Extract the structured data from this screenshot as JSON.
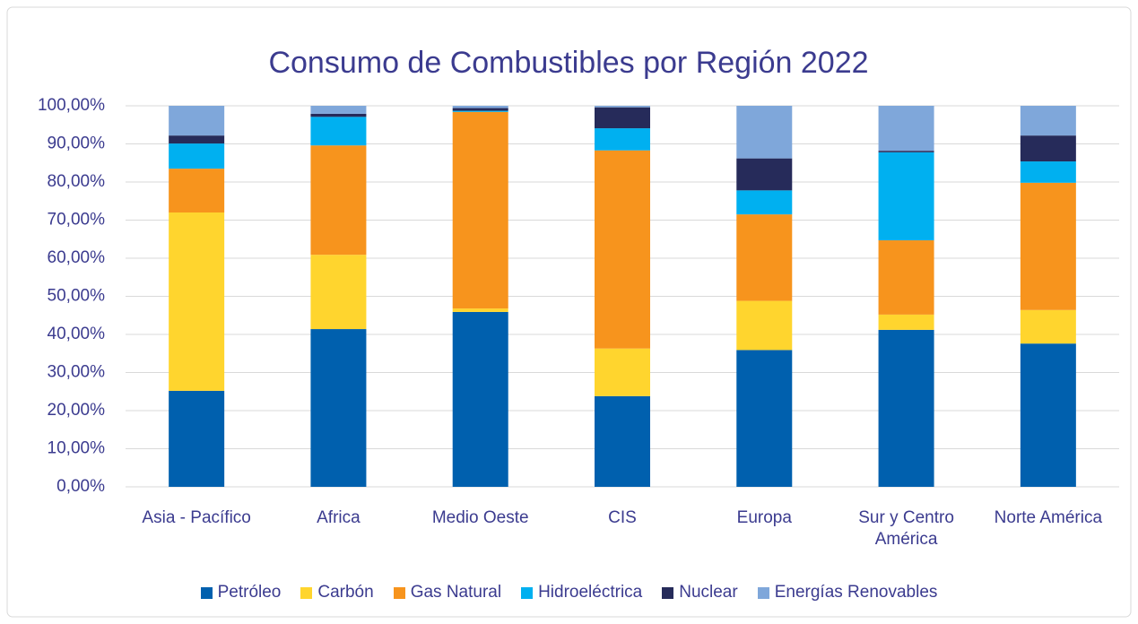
{
  "chart_data": {
    "type": "stacked_bar",
    "title": "Consumo de Combustibles por Región 2022",
    "categories": [
      "Asia - Pacífico",
      "Africa",
      "Medio Oeste",
      "CIS",
      "Europa",
      "Sur y Centro América",
      "Norte América"
    ],
    "series": [
      {
        "name": "Petróleo",
        "color": "#0060ae",
        "values": [
          25.2,
          41.4,
          45.9,
          23.8,
          35.9,
          41.2,
          37.6
        ]
      },
      {
        "name": "Carbón",
        "color": "#ffd52e",
        "values": [
          46.8,
          19.5,
          0.9,
          12.5,
          12.9,
          4.0,
          8.8
        ]
      },
      {
        "name": "Gas Natural",
        "color": "#f7941d",
        "values": [
          11.5,
          28.7,
          51.6,
          52.0,
          22.7,
          19.5,
          33.4
        ]
      },
      {
        "name": "Hidroeléctrica",
        "color": "#00b0f0",
        "values": [
          6.6,
          7.5,
          0.3,
          5.8,
          6.3,
          23.1,
          5.6
        ]
      },
      {
        "name": "Nuclear",
        "color": "#262b5a",
        "values": [
          2.1,
          0.8,
          0.7,
          5.5,
          8.4,
          0.4,
          6.8
        ]
      },
      {
        "name": "Energías Renovables",
        "color": "#7fa7da",
        "values": [
          7.8,
          2.1,
          0.6,
          0.4,
          13.8,
          11.8,
          7.8
        ]
      }
    ],
    "ylim": [
      0,
      100
    ],
    "yticks": [
      {
        "value": 0,
        "label": "0,00%"
      },
      {
        "value": 10,
        "label": "10,00%"
      },
      {
        "value": 20,
        "label": "20,00%"
      },
      {
        "value": 30,
        "label": "30,00%"
      },
      {
        "value": 40,
        "label": "40,00%"
      },
      {
        "value": 50,
        "label": "50,00%"
      },
      {
        "value": 60,
        "label": "60,00%"
      },
      {
        "value": 70,
        "label": "70,00%"
      },
      {
        "value": 80,
        "label": "80,00%"
      },
      {
        "value": 90,
        "label": "90,00%"
      },
      {
        "value": 100,
        "label": "100,00%"
      }
    ],
    "grid": true,
    "legend": "bottom"
  }
}
